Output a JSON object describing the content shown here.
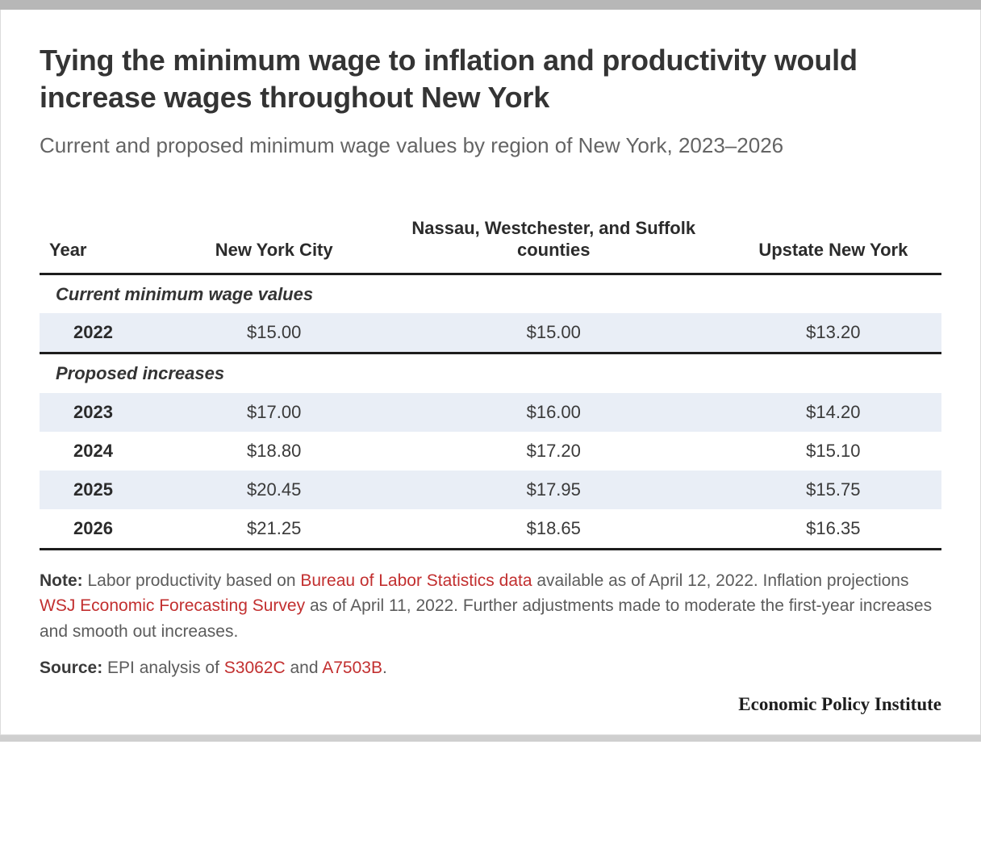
{
  "title": "Tying the minimum wage to inflation and productivity would increase wages throughout New York",
  "subtitle": "Current and proposed minimum wage values by region of New York, 2023–2026",
  "table": {
    "type": "table",
    "columns": [
      "Year",
      "New York City",
      "Nassau, Westchester, and Suffolk counties",
      "Upstate New York"
    ],
    "column_align": [
      "left",
      "center",
      "center",
      "center"
    ],
    "sections": [
      {
        "label": "Current minimum wage values",
        "rows": [
          {
            "year": "2022",
            "nyc": "$15.00",
            "nassau": "$15.00",
            "upstate": "$13.20",
            "striped": true
          }
        ],
        "end_rule": "thick"
      },
      {
        "label": "Proposed increases",
        "rows": [
          {
            "year": "2023",
            "nyc": "$17.00",
            "nassau": "$16.00",
            "upstate": "$14.20",
            "striped": true
          },
          {
            "year": "2024",
            "nyc": "$18.80",
            "nassau": "$17.20",
            "upstate": "$15.10",
            "striped": false
          },
          {
            "year": "2025",
            "nyc": "$20.45",
            "nassau": "$17.95",
            "upstate": "$15.75",
            "striped": true
          },
          {
            "year": "2026",
            "nyc": "$21.25",
            "nassau": "$18.65",
            "upstate": "$16.35",
            "striped": false
          }
        ],
        "end_rule": "thick"
      }
    ],
    "stripe_color": "#e9eef6",
    "text_color": "#3a3a3a",
    "header_fontsize": 22,
    "body_fontsize": 22,
    "rule_color": "#1d1d1d"
  },
  "note": {
    "label": "Note:",
    "part1": " Labor productivity based on ",
    "link1": "Bureau of Labor Statistics data",
    "part2": " available as of April 12, 2022. Inflation projections ",
    "link2": "WSJ Economic Forecasting Survey",
    "part3": " as of April 11, 2022. Further adjustments made to moderate the first-year increases and smooth out increases."
  },
  "source": {
    "label": "Source:",
    "part1": " EPI analysis of ",
    "link1": "S3062C",
    "part2": " and ",
    "link2": "A7503B",
    "part3": "."
  },
  "footer": "Economic Policy Institute",
  "colors": {
    "top_bar": "#b7b7b7",
    "bottom_bar": "#cfcfcf",
    "border": "#dcdcdc",
    "title": "#343434",
    "subtitle": "#646464",
    "link_red": "#c22f2f",
    "background": "#ffffff"
  }
}
